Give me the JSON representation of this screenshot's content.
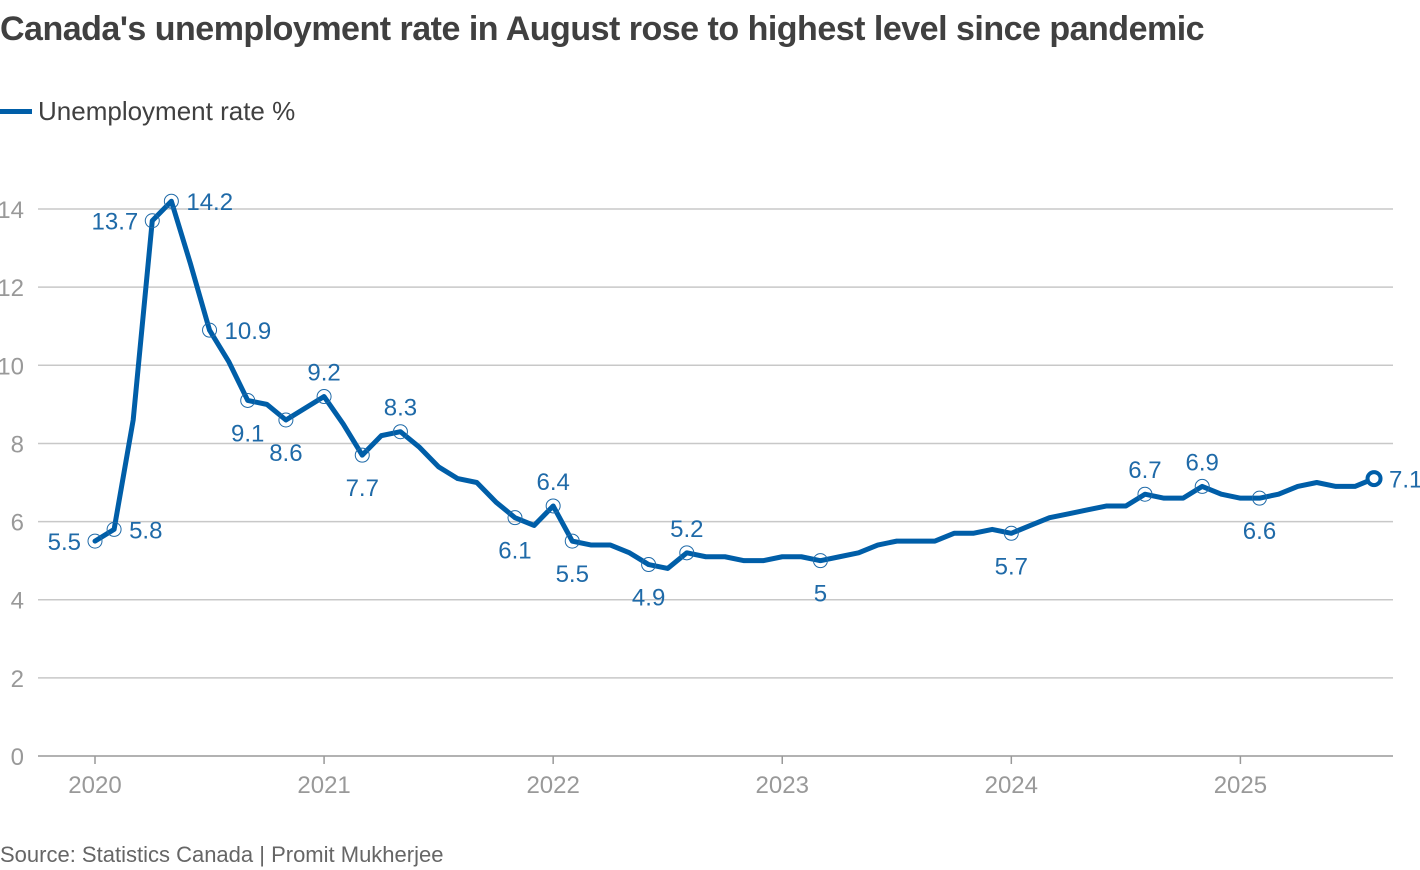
{
  "title": "Canada's unemployment rate in August rose to highest level since pandemic",
  "source": "Source: Statistics Canada | Promit Mukherjee",
  "colors": {
    "series": "#005ea8",
    "label": "#1f6aa8",
    "grid": "#c8c8c8",
    "axis": "#999999"
  },
  "chart_data": {
    "type": "line",
    "title": "Canada's unemployment rate in August rose to highest level since pandemic",
    "xlabel": "",
    "ylabel": "",
    "ylim": [
      0,
      14
    ],
    "yticks": [
      "0",
      "2",
      "4",
      "6",
      "8",
      "10",
      "12",
      "14"
    ],
    "xticks": [
      "2020",
      "2021",
      "2022",
      "2023",
      "2024",
      "2025"
    ],
    "x_start": "2020-01",
    "x_end": "2025-08",
    "frequency": "monthly",
    "grid": true,
    "legend_position": "top-left",
    "series": [
      {
        "name": "Unemployment rate %",
        "values": [
          5.5,
          5.8,
          8.6,
          13.7,
          14.2,
          12.6,
          10.9,
          10.1,
          9.1,
          9.0,
          8.6,
          8.9,
          9.2,
          8.5,
          7.7,
          8.2,
          8.3,
          7.9,
          7.4,
          7.1,
          7.0,
          6.5,
          6.1,
          5.9,
          6.4,
          5.5,
          5.4,
          5.4,
          5.2,
          4.9,
          4.8,
          5.2,
          5.1,
          5.1,
          5.0,
          5.0,
          5.1,
          5.1,
          5.0,
          5.1,
          5.2,
          5.4,
          5.5,
          5.5,
          5.5,
          5.7,
          5.7,
          5.8,
          5.7,
          5.9,
          6.1,
          6.2,
          6.3,
          6.4,
          6.4,
          6.7,
          6.6,
          6.6,
          6.9,
          6.7,
          6.6,
          6.6,
          6.7,
          6.9,
          7.0,
          6.9,
          6.9,
          7.1
        ]
      }
    ],
    "annotations": [
      {
        "index": 0,
        "text": "5.5",
        "position": "left"
      },
      {
        "index": 1,
        "text": "5.8",
        "position": "right"
      },
      {
        "index": 3,
        "text": "13.7",
        "position": "left"
      },
      {
        "index": 4,
        "text": "14.2",
        "position": "right"
      },
      {
        "index": 6,
        "text": "10.9",
        "position": "right"
      },
      {
        "index": 8,
        "text": "9.1",
        "position": "below"
      },
      {
        "index": 10,
        "text": "8.6",
        "position": "below"
      },
      {
        "index": 12,
        "text": "9.2",
        "position": "above"
      },
      {
        "index": 14,
        "text": "7.7",
        "position": "below"
      },
      {
        "index": 16,
        "text": "8.3",
        "position": "above"
      },
      {
        "index": 22,
        "text": "6.1",
        "position": "below"
      },
      {
        "index": 24,
        "text": "6.4",
        "position": "above"
      },
      {
        "index": 25,
        "text": "5.5",
        "position": "below"
      },
      {
        "index": 29,
        "text": "4.9",
        "position": "below"
      },
      {
        "index": 31,
        "text": "5.2",
        "position": "above"
      },
      {
        "index": 38,
        "text": "5",
        "position": "below"
      },
      {
        "index": 48,
        "text": "5.7",
        "position": "below"
      },
      {
        "index": 55,
        "text": "6.7",
        "position": "above"
      },
      {
        "index": 58,
        "text": "6.9",
        "position": "above"
      },
      {
        "index": 61,
        "text": "6.6",
        "position": "below"
      },
      {
        "index": 67,
        "text": "7.1",
        "position": "right",
        "highlight": true
      }
    ]
  }
}
